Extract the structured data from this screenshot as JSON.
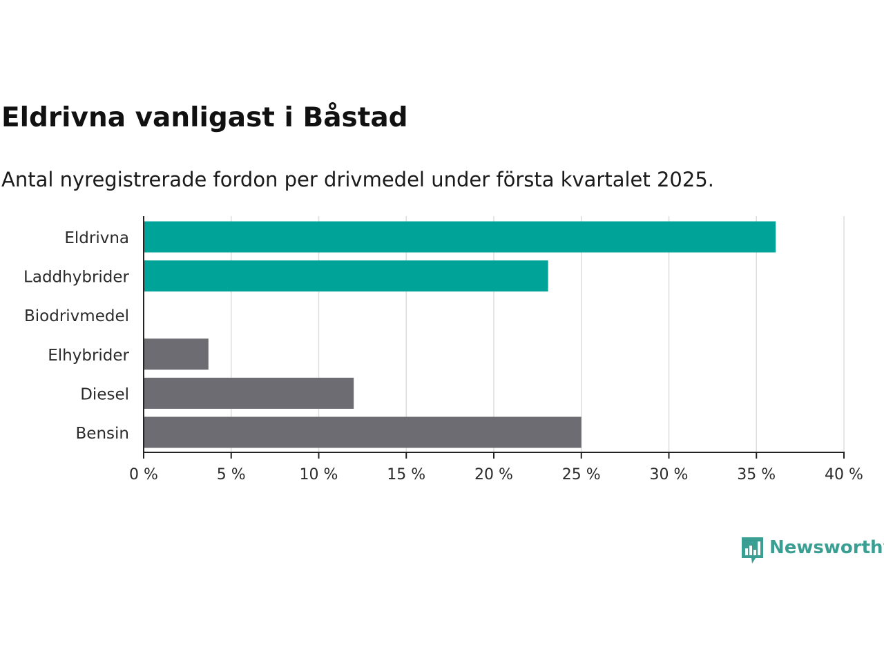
{
  "title": "Eldrivna vanligast i Båstad",
  "subtitle": "Antal nyregistrerade fordon per drivmedel under första kvartalet 2025.",
  "brand": {
    "name": "Newsworthy",
    "color": "#3a9e93"
  },
  "colors": {
    "highlight": "#00a398",
    "default": "#6d6c72",
    "grid": "#dddddd",
    "axis": "#222222"
  },
  "chart_data": {
    "type": "bar",
    "orientation": "horizontal",
    "categories": [
      "Eldrivna",
      "Laddhybrider",
      "Biodrivmedel",
      "Elhybrider",
      "Diesel",
      "Bensin"
    ],
    "values": [
      36.1,
      23.1,
      0,
      3.7,
      12.0,
      25.0
    ],
    "highlighted": [
      true,
      true,
      true,
      false,
      false,
      false
    ],
    "xlim": [
      0,
      40
    ],
    "xticks": [
      0,
      5,
      10,
      15,
      20,
      25,
      30,
      35,
      40
    ],
    "tick_suffix": " %",
    "grid": true,
    "xlabel": "",
    "ylabel": ""
  }
}
